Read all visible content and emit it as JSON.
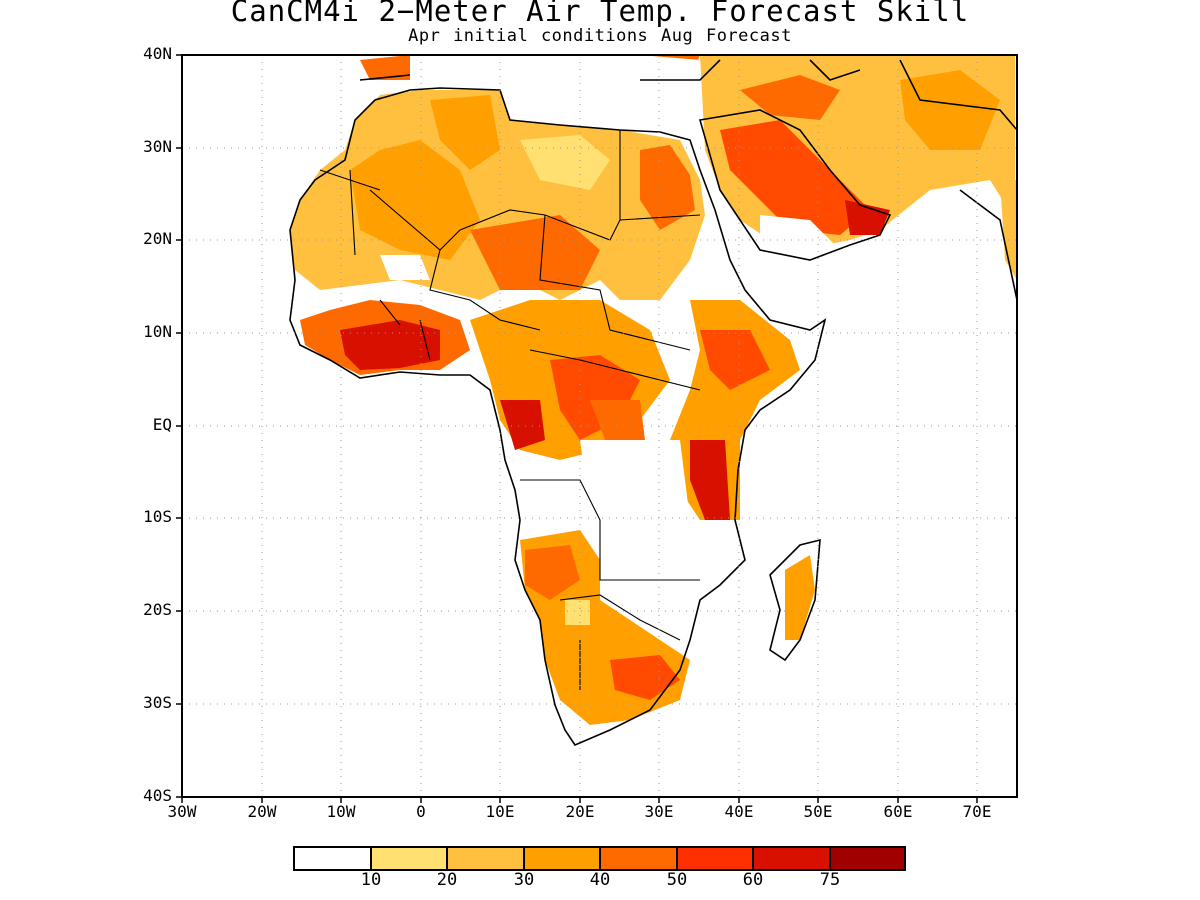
{
  "title": "CanCM4i 2−Meter Air Temp. Forecast Skill",
  "subtitle": "Apr initial conditions  Aug Forecast",
  "map": {
    "lat_labels": [
      "40N",
      "30N",
      "20N",
      "10N",
      "EQ",
      "10S",
      "20S",
      "30S",
      "40S"
    ],
    "lon_labels": [
      "30W",
      "20W",
      "10W",
      "0",
      "10E",
      "20E",
      "30E",
      "40E",
      "50E",
      "60E",
      "70E"
    ],
    "lat_range": [
      -40,
      40
    ],
    "lon_range": [
      -30,
      75
    ],
    "grid": "dotted"
  },
  "colorbar": {
    "colors": [
      "#ffffff",
      "#ffe070",
      "#ffc040",
      "#ffa000",
      "#ff6a00",
      "#ff3000",
      "#d81000",
      "#a00000"
    ],
    "labels": [
      "10",
      "20",
      "30",
      "40",
      "50",
      "60",
      "75"
    ]
  }
}
